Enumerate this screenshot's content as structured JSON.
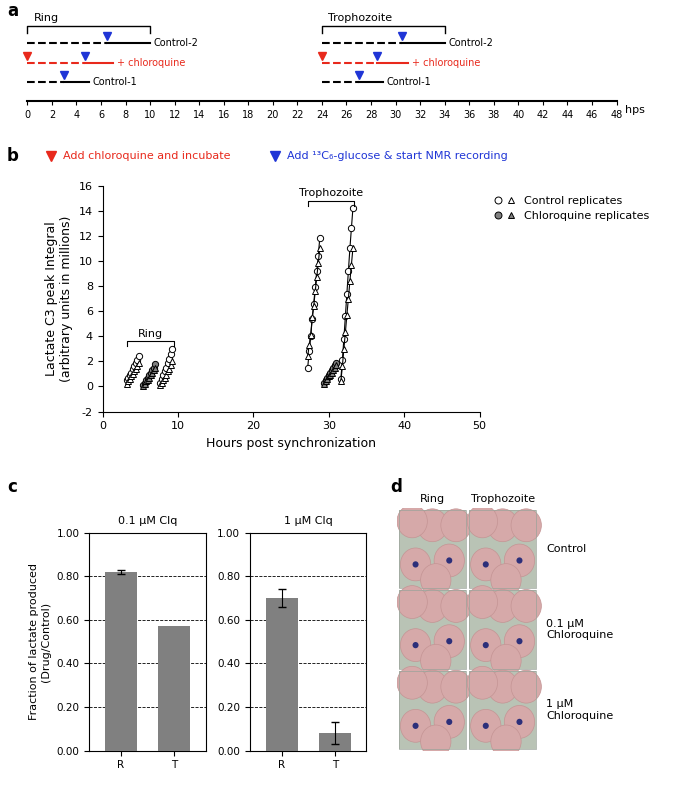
{
  "chart_data": [
    {
      "type": "timeline",
      "panel": "a",
      "x_label": "hps",
      "xlim": [
        0,
        48
      ],
      "xticks": [
        0,
        2,
        4,
        6,
        8,
        10,
        12,
        14,
        16,
        18,
        20,
        22,
        24,
        26,
        28,
        30,
        32,
        34,
        36,
        38,
        40,
        42,
        44,
        46,
        48
      ],
      "groups": [
        {
          "label": "Ring",
          "start": 0,
          "end": 10,
          "tracks": [
            {
              "name": "Control-2",
              "color": "#000000",
              "drug_at": null,
              "glucose_at": 6.5,
              "end": 10
            },
            {
              "name": "+ chloroquine",
              "color": "#e8291c",
              "drug_at": 0,
              "glucose_at": 4.7,
              "end": 7
            },
            {
              "name": "Control-1",
              "color": "#000000",
              "drug_at": null,
              "glucose_at": 3,
              "end": 5
            }
          ]
        },
        {
          "label": "Trophozoite",
          "start": 24,
          "end": 34,
          "tracks": [
            {
              "name": "Control-2",
              "color": "#000000",
              "drug_at": null,
              "glucose_at": 30.5,
              "end": 34
            },
            {
              "name": "+ chloroquine",
              "color": "#e8291c",
              "drug_at": 24,
              "glucose_at": 28.5,
              "end": 31
            },
            {
              "name": "Control-1",
              "color": "#000000",
              "drug_at": null,
              "glucose_at": 27,
              "end": 29
            }
          ]
        }
      ],
      "legend_items": [
        {
          "label": "Add chloroquine and incubate",
          "color": "#e8291c"
        },
        {
          "label": "Add ¹³C₆-glucose & start NMR recording",
          "color": "#1f35d6"
        }
      ]
    },
    {
      "type": "line",
      "panel": "b",
      "x_label": "Hours post synchronization",
      "y_label": "Lactate C3 peak Integral\n(arbitrary units in millions)",
      "xlim": [
        0,
        50
      ],
      "xticks": [
        0,
        10,
        20,
        30,
        40,
        50
      ],
      "ylim": [
        -2,
        16
      ],
      "yticks": [
        -2,
        0,
        2,
        4,
        6,
        8,
        10,
        12,
        14,
        16
      ],
      "legend": "outside right",
      "series": [
        {
          "name": "Control replicates",
          "color": "#ffffff",
          "marker": "circle",
          "x": [
            3.2,
            3.4,
            3.6,
            3.8,
            4.0,
            4.2,
            4.4,
            4.6,
            4.8,
            null,
            7.6,
            7.8,
            8.0,
            8.2,
            8.4,
            8.6,
            8.8,
            9.0,
            9.2,
            null,
            27.2,
            27.4,
            27.6,
            27.8,
            28.0,
            28.2,
            28.4,
            28.6,
            28.8,
            null,
            31.6,
            31.8,
            32.0,
            32.2,
            32.4,
            32.6,
            32.8,
            33.0,
            33.2
          ],
          "values": [
            0.5,
            0.7,
            0.9,
            1.1,
            1.4,
            1.6,
            1.9,
            2.1,
            2.4,
            null,
            0.3,
            0.6,
            0.9,
            1.2,
            1.5,
            1.9,
            2.2,
            2.6,
            3.0,
            null,
            1.5,
            2.8,
            4.0,
            5.4,
            6.6,
            7.9,
            9.2,
            10.4,
            11.8,
            null,
            0.6,
            2.1,
            3.8,
            5.6,
            7.4,
            9.2,
            11.0,
            12.6,
            14.2
          ]
        },
        {
          "name": "Control replicates",
          "color": "#ffffff",
          "marker": "triangle",
          "x": [
            3.2,
            3.4,
            3.6,
            3.8,
            4.0,
            4.2,
            4.4,
            4.6,
            4.8,
            null,
            7.6,
            7.8,
            8.0,
            8.2,
            8.4,
            8.6,
            8.8,
            9.0,
            9.2,
            null,
            27.2,
            27.4,
            27.6,
            27.8,
            28.0,
            28.2,
            28.4,
            28.6,
            28.8,
            null,
            31.6,
            31.8,
            32.0,
            32.2,
            32.4,
            32.6,
            32.8,
            33.0,
            33.2
          ],
          "values": [
            0.2,
            0.4,
            0.6,
            0.8,
            1.0,
            1.2,
            1.4,
            1.6,
            1.9,
            null,
            0.1,
            0.3,
            0.5,
            0.7,
            0.9,
            1.2,
            1.4,
            1.7,
            2.0,
            null,
            2.4,
            3.3,
            4.1,
            5.5,
            6.4,
            7.6,
            8.7,
            9.8,
            11.0,
            null,
            0.4,
            1.6,
            3.0,
            4.3,
            5.7,
            7.0,
            8.4,
            9.7,
            11.0
          ]
        },
        {
          "name": "Chloroquine replicates",
          "color": "#808080",
          "marker": "circle",
          "x": [
            5.4,
            5.6,
            5.8,
            6.0,
            6.2,
            6.4,
            6.6,
            6.8,
            7.0,
            null,
            29.4,
            29.6,
            29.8,
            30.0,
            30.2,
            30.4,
            30.6,
            30.8,
            31.0
          ],
          "values": [
            0.1,
            0.3,
            0.5,
            0.7,
            0.9,
            1.1,
            1.3,
            1.5,
            1.8,
            null,
            0.3,
            0.5,
            0.7,
            0.9,
            1.1,
            1.3,
            1.5,
            1.7,
            1.9
          ]
        },
        {
          "name": "Chloroquine replicates",
          "color": "#808080",
          "marker": "triangle",
          "x": [
            5.4,
            5.6,
            5.8,
            6.0,
            6.2,
            6.4,
            6.6,
            6.8,
            7.0,
            null,
            29.4,
            29.6,
            29.8,
            30.0,
            30.2,
            30.4,
            30.6,
            30.8,
            31.0
          ],
          "values": [
            0.0,
            0.2,
            0.4,
            0.5,
            0.7,
            0.9,
            1.1,
            1.3,
            1.5,
            null,
            0.2,
            0.4,
            0.6,
            0.8,
            0.9,
            1.1,
            1.3,
            1.5,
            1.7
          ]
        }
      ],
      "brackets": [
        {
          "label": "Ring",
          "x": [
            3.2,
            9.5
          ]
        },
        {
          "label": "Trophozoite",
          "x": [
            27.2,
            33.4
          ]
        }
      ]
    },
    {
      "type": "bar",
      "panel": "c",
      "title": "0.1 µM Clq",
      "y_label": "Fraction of lactate produced\n(Drug/Control)",
      "categories": [
        "R",
        "T"
      ],
      "values": [
        0.82,
        0.57
      ],
      "errors": [
        0.01,
        null
      ],
      "color": "#808080",
      "ylim": [
        0,
        1
      ],
      "grid": true,
      "yticks": [
        {
          "value": 0,
          "label": "0.00"
        },
        {
          "value": 0.2,
          "label": "0.20"
        },
        {
          "value": 0.4,
          "label": "0.40"
        },
        {
          "value": 0.6,
          "label": "0.60"
        },
        {
          "value": 0.8,
          "label": "0.80"
        },
        {
          "value": 1,
          "label": "1.00"
        }
      ]
    },
    {
      "type": "bar",
      "title": "1 µM Clq",
      "categories": [
        "R",
        "T"
      ],
      "values": [
        0.7,
        0.08
      ],
      "errors": [
        0.04,
        0.05
      ],
      "color": "#808080",
      "ylim": [
        0,
        1
      ],
      "grid": true,
      "yticks": [
        {
          "value": 0,
          "label": "0.00"
        },
        {
          "value": 0.2,
          "label": "0.20"
        },
        {
          "value": 0.4,
          "label": "0.40"
        },
        {
          "value": 0.6,
          "label": "0.60"
        },
        {
          "value": 0.8,
          "label": "0.80"
        },
        {
          "value": 1,
          "label": "1.00"
        }
      ]
    },
    {
      "type": "image_grid",
      "panel": "d",
      "columns": [
        "Ring",
        "Trophozoite"
      ],
      "rows": [
        "Control",
        "0.1 µM\nChloroquine",
        "1 µM\nChloroquine"
      ]
    }
  ]
}
